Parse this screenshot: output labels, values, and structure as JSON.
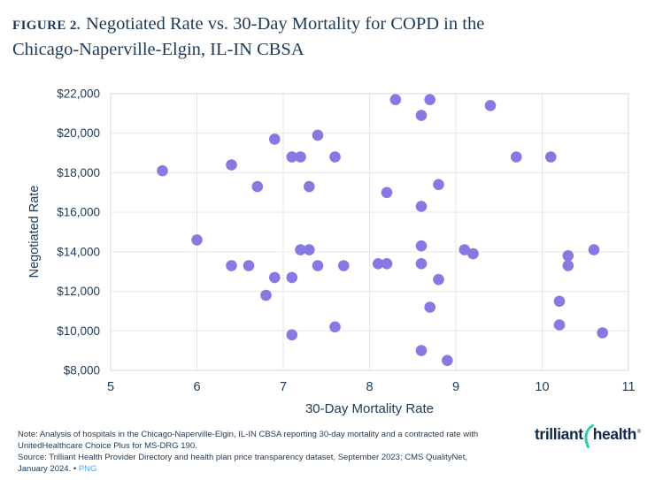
{
  "figure": {
    "label": "FIGURE 2.",
    "title_line1": "Negotiated Rate vs. 30-Day Mortality for COPD in the",
    "title_line2": "Chicago-Naperville-Elgin, IL-IN CBSA"
  },
  "chart_data": {
    "type": "scatter",
    "title": "Negotiated Rate vs. 30-Day Mortality for COPD in the Chicago-Naperville-Elgin, IL-IN CBSA",
    "xlabel": "30-Day Mortality Rate",
    "ylabel": "Negotiated Rate",
    "xlim": [
      5,
      11
    ],
    "ylim": [
      8000,
      22000
    ],
    "xticks": [
      5,
      6,
      7,
      8,
      9,
      10,
      11
    ],
    "xtick_labels": [
      "5",
      "6",
      "7",
      "8",
      "9",
      "10",
      "11"
    ],
    "yticks": [
      8000,
      10000,
      12000,
      14000,
      16000,
      18000,
      20000,
      22000
    ],
    "ytick_labels": [
      "$8,000",
      "$10,000",
      "$12,000",
      "$14,000",
      "$16,000",
      "$18,000",
      "$20,000",
      "$22,000"
    ],
    "grid": true,
    "legend": "none",
    "points": [
      [
        5.6,
        18100
      ],
      [
        6.0,
        14600
      ],
      [
        6.4,
        18400
      ],
      [
        6.4,
        13300
      ],
      [
        6.6,
        13300
      ],
      [
        6.7,
        17300
      ],
      [
        6.8,
        11800
      ],
      [
        6.9,
        19700
      ],
      [
        6.9,
        12700
      ],
      [
        7.1,
        18800
      ],
      [
        7.1,
        12700
      ],
      [
        7.1,
        9800
      ],
      [
        7.2,
        18800
      ],
      [
        7.2,
        14100
      ],
      [
        7.3,
        14100
      ],
      [
        7.3,
        17300
      ],
      [
        7.4,
        19900
      ],
      [
        7.4,
        13300
      ],
      [
        7.6,
        18800
      ],
      [
        7.6,
        10200
      ],
      [
        7.7,
        13300
      ],
      [
        8.1,
        13400
      ],
      [
        8.2,
        13400
      ],
      [
        8.2,
        17000
      ],
      [
        8.3,
        21700
      ],
      [
        8.6,
        20900
      ],
      [
        8.6,
        16300
      ],
      [
        8.6,
        14300
      ],
      [
        8.6,
        13400
      ],
      [
        8.6,
        9000
      ],
      [
        8.7,
        21700
      ],
      [
        8.7,
        11200
      ],
      [
        8.8,
        17400
      ],
      [
        8.8,
        12600
      ],
      [
        8.9,
        8500
      ],
      [
        9.1,
        14100
      ],
      [
        9.2,
        13900
      ],
      [
        9.4,
        21400
      ],
      [
        9.7,
        18800
      ],
      [
        10.1,
        18800
      ],
      [
        10.2,
        11500
      ],
      [
        10.2,
        10300
      ],
      [
        10.3,
        13800
      ],
      [
        10.3,
        13300
      ],
      [
        10.6,
        14100
      ],
      [
        10.7,
        9900
      ]
    ]
  },
  "footer": {
    "lines": [
      "Note: Analysis of hospitals in the Chicago-Naperville-Elgin, IL-IN CBSA reporting 30-day mortality and a contracted rate with",
      "UnitedHealthcare Choice Plus for MS-DRG 190.",
      "Source: Trilliant Health Provider Directory and health plan price transparency dataset, September 2023; CMS QualityNet,"
    ],
    "last_line_prefix": "January 2024. • ",
    "link_label": "PNG"
  },
  "logo": {
    "word1": "trilliant",
    "word2": "health",
    "registered": "®"
  },
  "colors": {
    "navy": "#1c3a57",
    "point": "#8779e2",
    "grid": "#e6e6e9",
    "border": "#d8d8db",
    "link": "#4da9e8",
    "teal": "#2bd0a5",
    "logo_navy": "#0f2b49"
  }
}
